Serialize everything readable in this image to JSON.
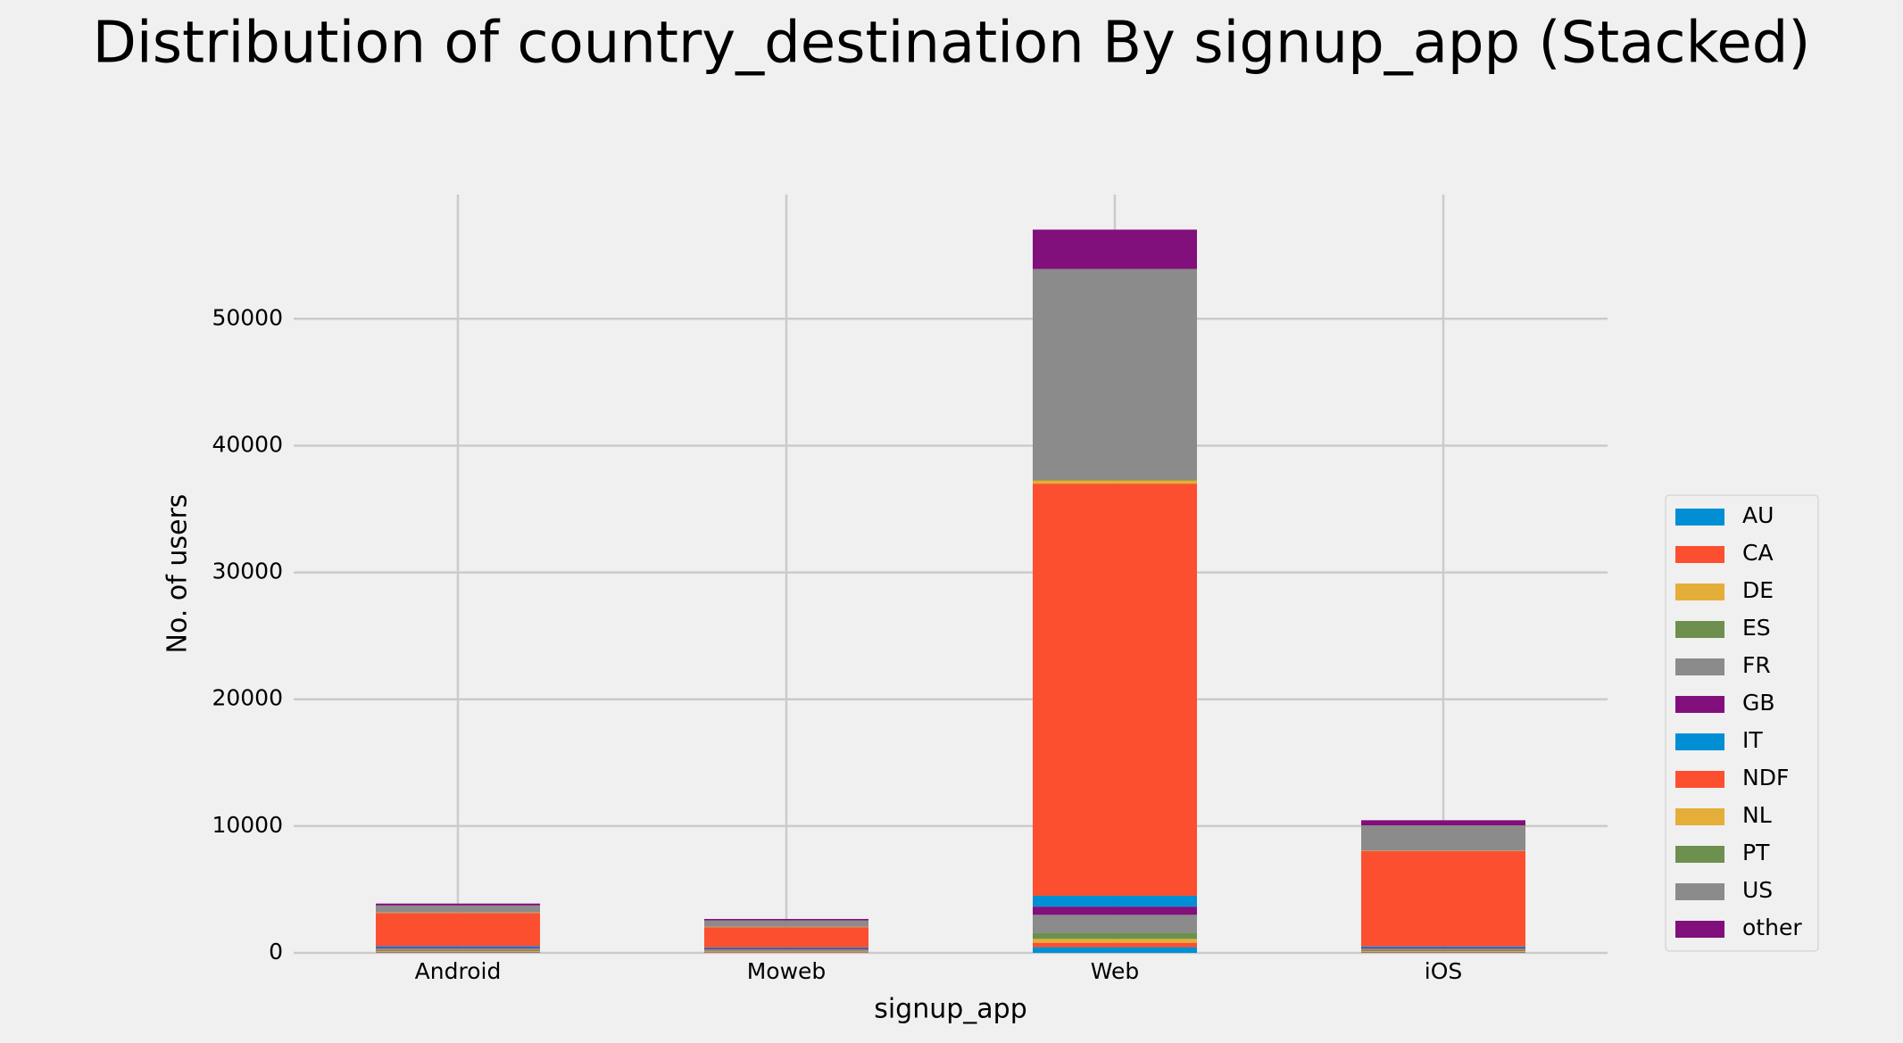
{
  "chart_data": {
    "type": "stacked_bar",
    "title": "Distribution of country_destination By signup_app (Stacked)",
    "xlabel": "signup_app",
    "ylabel": "No. of users",
    "categories": [
      "Android",
      "Moweb",
      "Web",
      "iOS"
    ],
    "ylim": [
      0,
      59800
    ],
    "yticks": [
      0,
      10000,
      20000,
      30000,
      40000,
      50000
    ],
    "grid": true,
    "legend": "lower right",
    "series": [
      {
        "name": "AU",
        "color": "#008fd5",
        "values": [
          30,
          20,
          450,
          30
        ]
      },
      {
        "name": "CA",
        "color": "#fc4f30",
        "values": [
          60,
          50,
          350,
          60
        ]
      },
      {
        "name": "DE",
        "color": "#e5ae38",
        "values": [
          50,
          40,
          300,
          50
        ]
      },
      {
        "name": "ES",
        "color": "#6d904f",
        "values": [
          80,
          60,
          500,
          70
        ]
      },
      {
        "name": "FR",
        "color": "#8b8b8b",
        "values": [
          150,
          120,
          1400,
          150
        ]
      },
      {
        "name": "GB",
        "color": "#810f7c",
        "values": [
          80,
          60,
          650,
          70
        ]
      },
      {
        "name": "IT",
        "color": "#008fd5",
        "values": [
          100,
          80,
          850,
          90
        ]
      },
      {
        "name": "NDF",
        "color": "#fc4f30",
        "values": [
          2600,
          1600,
          32500,
          7500
        ]
      },
      {
        "name": "NL",
        "color": "#e5ae38",
        "values": [
          30,
          20,
          250,
          30
        ]
      },
      {
        "name": "PT",
        "color": "#6d904f",
        "values": [
          10,
          5,
          80,
          10
        ]
      },
      {
        "name": "US",
        "color": "#8b8b8b",
        "values": [
          550,
          500,
          16600,
          2000
        ]
      },
      {
        "name": "other",
        "color": "#810f7c",
        "values": [
          150,
          120,
          3100,
          400
        ]
      }
    ]
  }
}
